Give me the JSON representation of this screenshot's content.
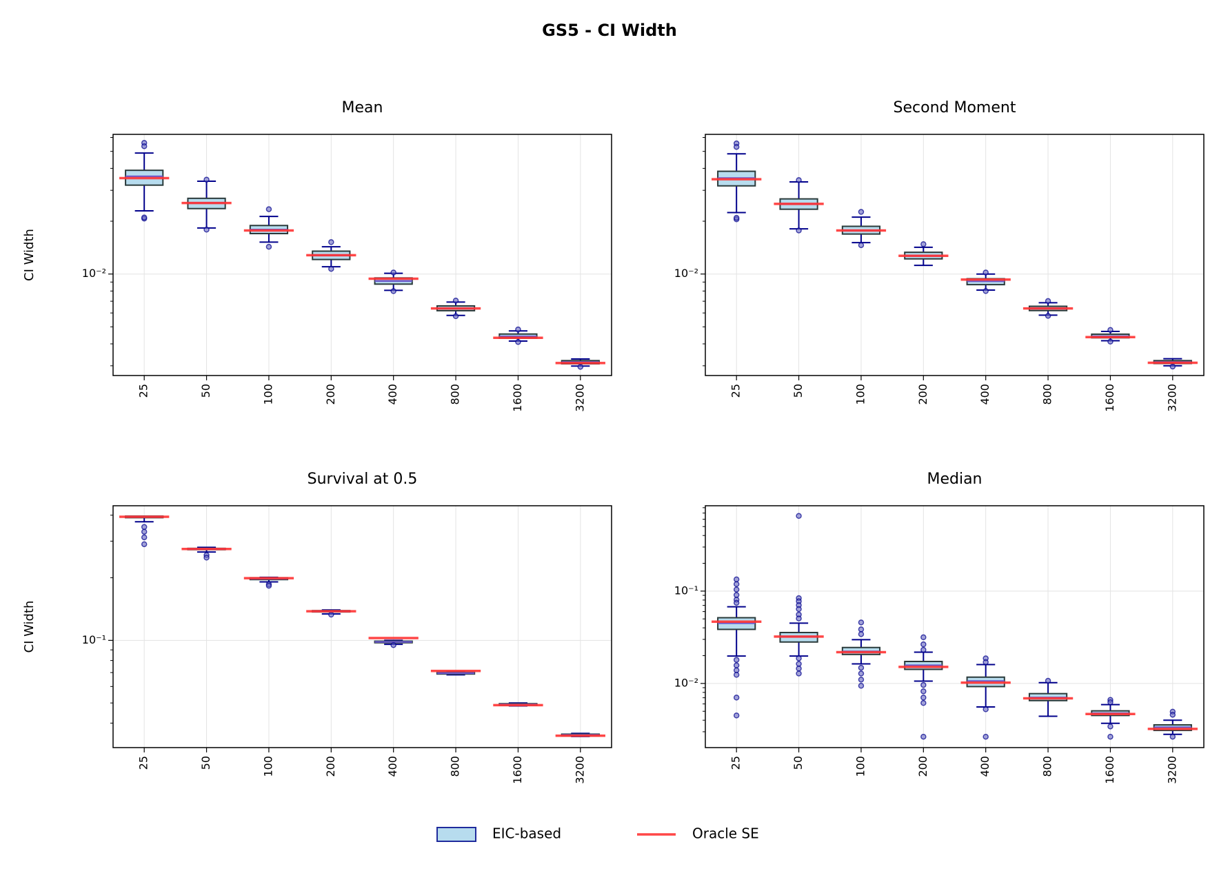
{
  "title": "GS5 - CI Width",
  "legend": {
    "location": "lower center",
    "items": [
      {
        "name": "EIC-based",
        "color": "#b7dcee",
        "edgecolor": "#1f2a9c",
        "kind": "patch"
      },
      {
        "name": "Oracle SE",
        "color": "#ff3333",
        "kind": "line"
      }
    ]
  },
  "chart_data": [
    {
      "type": "box",
      "title": "Mean",
      "ylabel": "CI Width",
      "yscale": "log",
      "grid": true,
      "categories": [
        "25",
        "50",
        "100",
        "200",
        "400",
        "800",
        "1600",
        "3200"
      ],
      "ylim": [
        0.00264,
        0.0625
      ],
      "yticks": [
        {
          "value": 0.01,
          "label": "10⁻²"
        }
      ],
      "series": [
        {
          "color": "#b7dcee",
          "edgecolor": "#2a3a3a",
          "median_color": "#6a5acd",
          "whisker_color": "#00008b",
          "boxes": [
            {
              "whislo": 0.0229,
              "q1": 0.0321,
              "med": 0.036,
              "q3": 0.039,
              "whishi": 0.0489,
              "fliers": [
                0.0559,
                0.0535,
                0.0207,
                0.021
              ]
            },
            {
              "whislo": 0.0183,
              "q1": 0.0236,
              "med": 0.0254,
              "q3": 0.027,
              "whishi": 0.0338,
              "fliers": [
                0.0345,
                0.0179
              ]
            },
            {
              "whislo": 0.0152,
              "q1": 0.017,
              "med": 0.0179,
              "q3": 0.0189,
              "whishi": 0.0213,
              "fliers": [
                0.0234,
                0.0143
              ]
            },
            {
              "whislo": 0.011,
              "q1": 0.0121,
              "med": 0.0128,
              "q3": 0.0135,
              "whishi": 0.0143,
              "fliers": [
                0.0152,
                0.0107
              ]
            },
            {
              "whislo": 0.00807,
              "q1": 0.00876,
              "med": 0.00912,
              "q3": 0.0095,
              "whishi": 0.0101,
              "fliers": [
                0.0102,
                0.00799
              ]
            },
            {
              "whislo": 0.00581,
              "q1": 0.00618,
              "med": 0.00637,
              "q3": 0.00658,
              "whishi": 0.00692,
              "fliers": [
                0.00706,
                0.00575
              ]
            },
            {
              "whislo": 0.00415,
              "q1": 0.00432,
              "med": 0.00441,
              "q3": 0.00455,
              "whishi": 0.00474,
              "fliers": [
                0.00483,
                0.0041
              ]
            },
            {
              "whislo": 0.00299,
              "q1": 0.00308,
              "med": 0.00315,
              "q3": 0.00321,
              "whishi": 0.00328,
              "fliers": [
                0.00296
              ]
            }
          ]
        },
        {
          "color": "#ff3333",
          "values": [
            0.0352,
            0.0254,
            0.0177,
            0.0128,
            0.0094,
            0.00637,
            0.00433,
            0.00311
          ]
        }
      ]
    },
    {
      "type": "box",
      "title": "Second Moment",
      "yscale": "log",
      "grid": true,
      "categories": [
        "25",
        "50",
        "100",
        "200",
        "400",
        "800",
        "1600",
        "3200"
      ],
      "ylim": [
        0.00264,
        0.0625
      ],
      "yticks": [
        {
          "value": 0.01,
          "label": "10⁻²"
        }
      ],
      "series": [
        {
          "color": "#b7dcee",
          "edgecolor": "#2a3a3a",
          "median_color": "#6a5acd",
          "whisker_color": "#00008b",
          "boxes": [
            {
              "whislo": 0.0224,
              "q1": 0.0318,
              "med": 0.0352,
              "q3": 0.0385,
              "whishi": 0.0484,
              "fliers": [
                0.0555,
                0.053,
                0.0205,
                0.0209
              ]
            },
            {
              "whislo": 0.0181,
              "q1": 0.0234,
              "med": 0.0251,
              "q3": 0.0268,
              "whishi": 0.0335,
              "fliers": [
                0.0343,
                0.0177
              ]
            },
            {
              "whislo": 0.0151,
              "q1": 0.0169,
              "med": 0.0177,
              "q3": 0.0187,
              "whishi": 0.0211,
              "fliers": [
                0.0226,
                0.0146
              ]
            },
            {
              "whislo": 0.0112,
              "q1": 0.0122,
              "med": 0.0127,
              "q3": 0.0133,
              "whishi": 0.0142,
              "fliers": [
                0.0148
              ]
            },
            {
              "whislo": 0.0081,
              "q1": 0.0087,
              "med": 0.0091,
              "q3": 0.0094,
              "whishi": 0.01,
              "fliers": [
                0.0102,
                0.008
              ]
            },
            {
              "whislo": 0.00583,
              "q1": 0.00619,
              "med": 0.00637,
              "q3": 0.00655,
              "whishi": 0.00686,
              "fliers": [
                0.00702,
                0.00578
              ]
            },
            {
              "whislo": 0.00417,
              "q1": 0.00433,
              "med": 0.00442,
              "q3": 0.00454,
              "whishi": 0.00471,
              "fliers": [
                0.0048,
                0.00412
              ]
            },
            {
              "whislo": 0.003,
              "q1": 0.00309,
              "med": 0.00315,
              "q3": 0.00321,
              "whishi": 0.00329,
              "fliers": [
                0.00297
              ]
            }
          ]
        },
        {
          "color": "#ff3333",
          "values": [
            0.0347,
            0.0251,
            0.0177,
            0.0127,
            0.0093,
            0.00637,
            0.00437,
            0.00312
          ]
        }
      ]
    },
    {
      "type": "box",
      "title": "Survival at 0.5",
      "ylabel": "CI Width",
      "yscale": "log",
      "grid": true,
      "categories": [
        "25",
        "50",
        "100",
        "200",
        "400",
        "800",
        "1600",
        "3200"
      ],
      "ylim": [
        0.0305,
        0.444
      ],
      "yticks": [
        {
          "value": 0.1,
          "label": "10⁻¹"
        }
      ],
      "series": [
        {
          "color": "#b7dcee",
          "edgecolor": "#2a3a3a",
          "median_color": "#6a5acd",
          "whisker_color": "#00008b",
          "boxes": [
            {
              "whislo": 0.372,
              "q1": 0.389,
              "med": 0.393,
              "q3": 0.396,
              "whishi": 0.396,
              "fliers": [
                0.351,
                0.333,
                0.313,
                0.29
              ]
            },
            {
              "whislo": 0.266,
              "q1": 0.273,
              "med": 0.275,
              "q3": 0.277,
              "whishi": 0.28,
              "fliers": [
                0.257,
                0.25
              ]
            },
            {
              "whislo": 0.191,
              "q1": 0.196,
              "med": 0.198,
              "q3": 0.2,
              "whishi": 0.201,
              "fliers": [
                0.186,
                0.183
              ]
            },
            {
              "whislo": 0.134,
              "q1": 0.137,
              "med": 0.138,
              "q3": 0.139,
              "whishi": 0.14,
              "fliers": [
                0.133
              ]
            },
            {
              "whislo": 0.0957,
              "q1": 0.0974,
              "med": 0.0983,
              "q3": 0.0991,
              "whishi": 0.1,
              "fliers": [
                0.0949
              ]
            },
            {
              "whislo": 0.0683,
              "q1": 0.0689,
              "med": 0.0695,
              "q3": 0.0702,
              "whishi": 0.0707,
              "fliers": []
            },
            {
              "whislo": 0.0484,
              "q1": 0.0488,
              "med": 0.0492,
              "q3": 0.0496,
              "whishi": 0.05,
              "fliers": []
            },
            {
              "whislo": 0.0345,
              "q1": 0.0348,
              "med": 0.0351,
              "q3": 0.0354,
              "whishi": 0.0357,
              "fliers": []
            }
          ]
        },
        {
          "color": "#ff3333",
          "values": [
            0.393,
            0.275,
            0.199,
            0.138,
            0.1026,
            0.0713,
            0.0488,
            0.0348
          ]
        }
      ]
    },
    {
      "type": "box",
      "title": "Median",
      "yscale": "log",
      "grid": true,
      "categories": [
        "25",
        "50",
        "100",
        "200",
        "400",
        "800",
        "1600",
        "3200"
      ],
      "ylim": [
        0.00202,
        0.84
      ],
      "yticks": [
        {
          "value": 0.01,
          "label": "10⁻²"
        },
        {
          "value": 0.1,
          "label": "10⁻¹"
        }
      ],
      "series": [
        {
          "color": "#b7dcee",
          "edgecolor": "#2a3a3a",
          "median_color": "#6a5acd",
          "whisker_color": "#00008b",
          "boxes": [
            {
              "whislo": 0.0198,
              "q1": 0.0385,
              "med": 0.045,
              "q3": 0.0515,
              "whishi": 0.0677,
              "fliers": [
                0.134,
                0.119,
                0.104,
                0.0907,
                0.0807,
                0.0746,
                0.018,
                0.0157,
                0.0139,
                0.0124,
                0.00703,
                0.0045
              ]
            },
            {
              "whislo": 0.0198,
              "q1": 0.0281,
              "med": 0.0322,
              "q3": 0.0356,
              "whishi": 0.045,
              "fliers": [
                0.652,
                0.0839,
                0.0776,
                0.0704,
                0.0638,
                0.0557,
                0.0505,
                0.0187,
                0.0163,
                0.0145,
                0.0128
              ]
            },
            {
              "whislo": 0.0163,
              "q1": 0.0206,
              "med": 0.0222,
              "q3": 0.0245,
              "whishi": 0.0298,
              "fliers": [
                0.0458,
                0.0385,
                0.0342,
                0.0148,
                0.0128,
                0.011,
                0.00944
              ]
            },
            {
              "whislo": 0.0106,
              "q1": 0.0142,
              "med": 0.0157,
              "q3": 0.0173,
              "whishi": 0.0218,
              "fliers": [
                0.0316,
                0.0265,
                0.0231,
                0.00962,
                0.00822,
                0.00703,
                0.00614,
                0.00265
              ]
            },
            {
              "whislo": 0.00557,
              "q1": 0.00925,
              "med": 0.0106,
              "q3": 0.0117,
              "whishi": 0.016,
              "fliers": [
                0.0187,
                0.017,
                0.00525,
                0.00265
              ]
            },
            {
              "whislo": 0.00441,
              "q1": 0.00652,
              "med": 0.00703,
              "q3": 0.00776,
              "whishi": 0.0102,
              "fliers": [
                0.0107
              ]
            },
            {
              "whislo": 0.0037,
              "q1": 0.0045,
              "med": 0.00476,
              "q3": 0.00505,
              "whishi": 0.0059,
              "fliers": [
                0.00664,
                0.00627,
                0.00342,
                0.00265
              ]
            },
            {
              "whislo": 0.00281,
              "q1": 0.0031,
              "med": 0.00335,
              "q3": 0.00356,
              "whishi": 0.004,
              "fliers": [
                0.00495,
                0.00458,
                0.00265
              ]
            }
          ]
        },
        {
          "color": "#ff3333",
          "values": [
            0.0467,
            0.0322,
            0.0218,
            0.0151,
            0.0102,
            0.0069,
            0.00467,
            0.00322
          ]
        }
      ]
    }
  ]
}
